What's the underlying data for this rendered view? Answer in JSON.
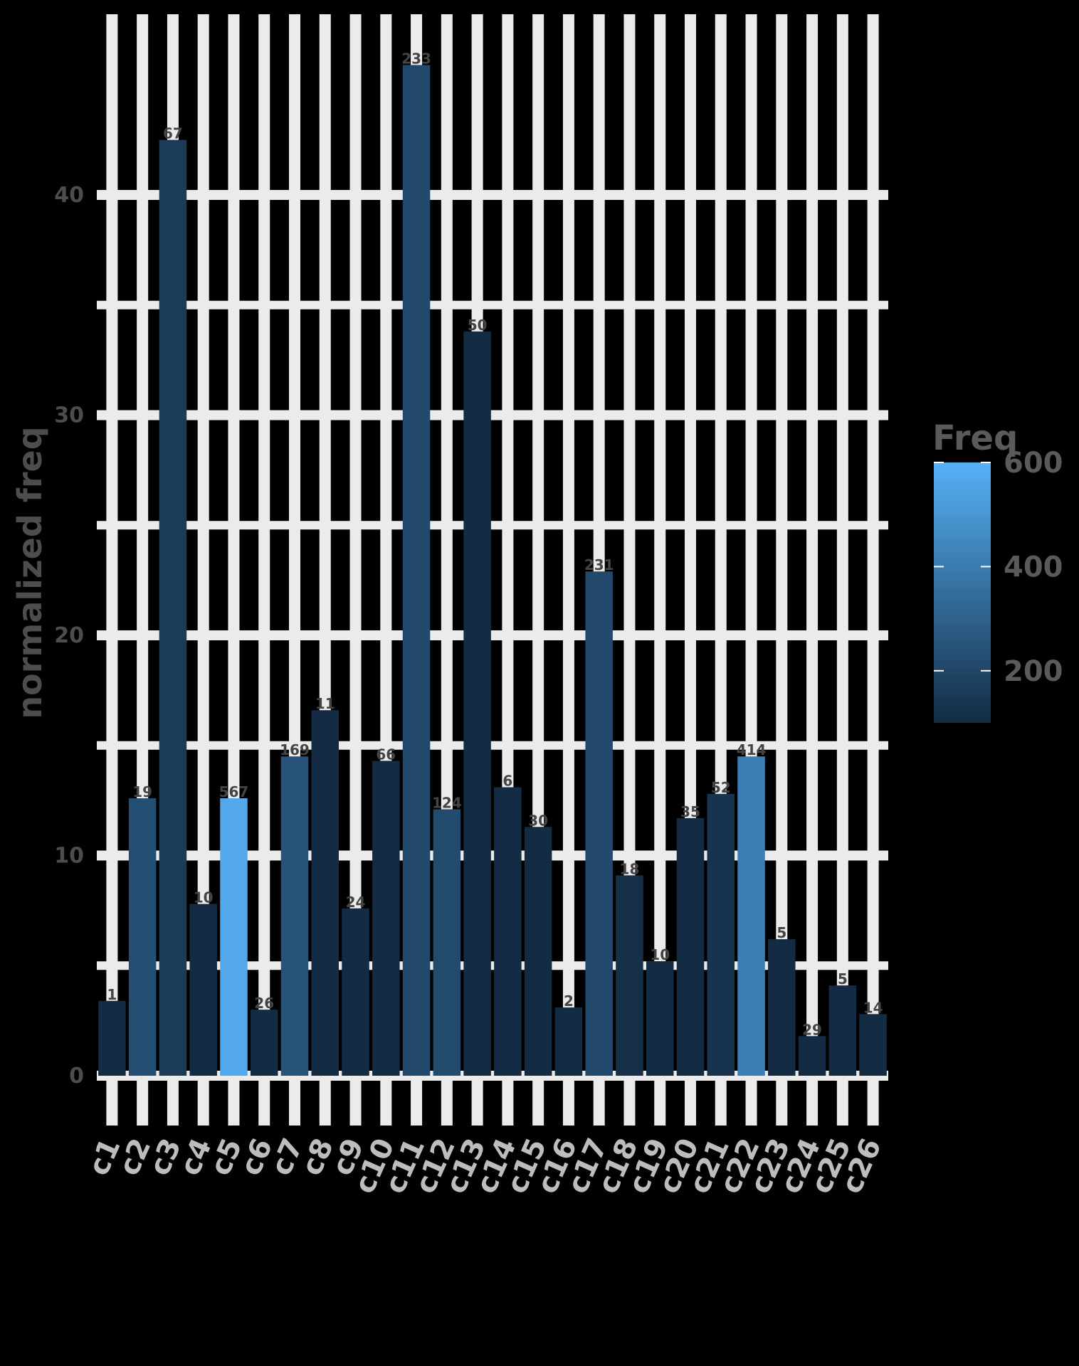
{
  "chart_data": {
    "type": "bar",
    "title": "",
    "xlabel": "",
    "ylabel": "normalized freq",
    "ylim": [
      0,
      46
    ],
    "y_ticks": [
      0,
      10,
      20,
      30,
      40
    ],
    "y_tick_labels": [
      "0",
      "10",
      "20",
      "30",
      "40"
    ],
    "grid": true,
    "categories": [
      "c1",
      "c2",
      "c3",
      "c4",
      "c5",
      "c6",
      "c7",
      "c8",
      "c9",
      "c10",
      "c11",
      "c12",
      "c13",
      "c14",
      "c15",
      "c16",
      "c17",
      "c18",
      "c19",
      "c20",
      "c21",
      "c22",
      "c23",
      "c24",
      "c25",
      "c26"
    ],
    "values": [
      3.4,
      12.6,
      42.5,
      7.8,
      12.6,
      3.0,
      14.5,
      16.6,
      7.6,
      14.3,
      45.9,
      12.1,
      33.8,
      13.1,
      11.3,
      3.1,
      22.9,
      9.1,
      5.2,
      11.7,
      12.8,
      14.5,
      6.2,
      1.8,
      4.1,
      2.8
    ],
    "labels": [
      "1",
      "19",
      "67",
      "10",
      "567",
      "26",
      "169",
      "11",
      "24",
      "66",
      "233",
      "124",
      "50",
      "6",
      "30",
      "2",
      "231",
      "18",
      "10",
      "35",
      "52",
      "414",
      "5",
      "29",
      "5",
      "14"
    ],
    "freq": [
      30,
      230,
      160,
      70,
      567,
      40,
      250,
      80,
      100,
      60,
      210,
      220,
      40,
      90,
      40,
      20,
      210,
      120,
      60,
      80,
      130,
      414,
      50,
      50,
      60,
      40
    ],
    "legend": {
      "title": "Freq",
      "position": "right",
      "min": 100,
      "max": 600,
      "ticks": [
        200,
        400,
        600
      ],
      "tick_labels": [
        "200",
        "400",
        "600"
      ],
      "color_low": "#132B43",
      "color_high": "#56B1F7"
    },
    "background_color": "#000000",
    "grid_color": "#EBEBEB",
    "tick_label_color": "#4D4D4D"
  }
}
